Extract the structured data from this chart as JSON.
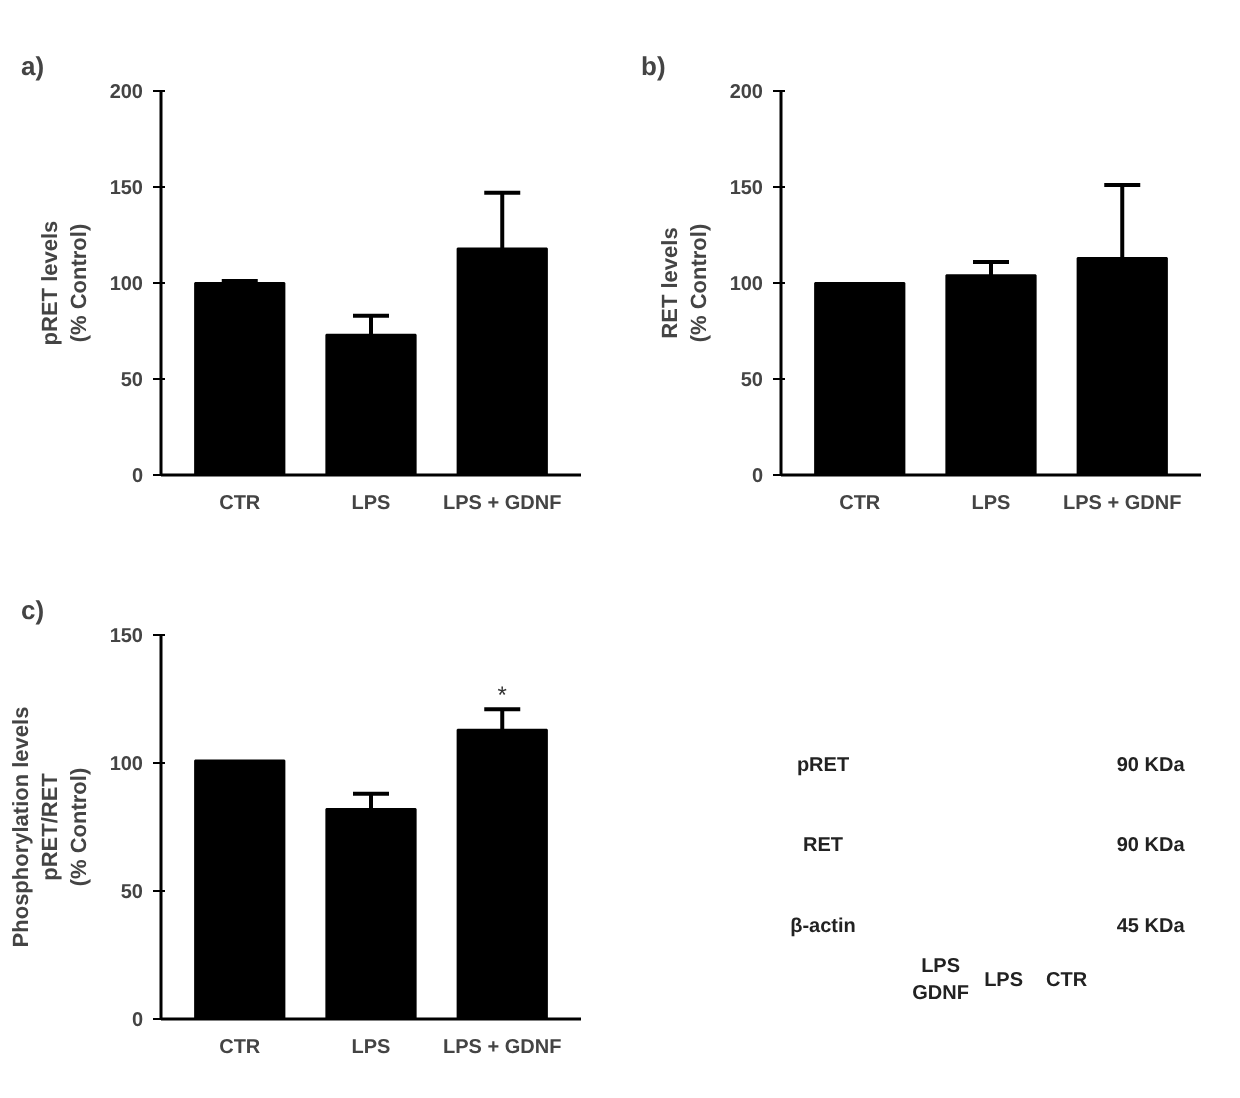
{
  "chart_data": [
    {
      "type": "bar",
      "title": "a)",
      "ylabel": "pRET levels\n(% Control)",
      "categories": [
        "CTR",
        "LPS",
        "LPS + GDNF"
      ],
      "values": [
        100,
        73,
        118
      ],
      "errors": [
        1,
        10,
        29
      ],
      "color": "#000000",
      "ylim": [
        0,
        200
      ],
      "yticks": [
        0,
        50,
        100,
        150,
        200
      ],
      "grid": false
    },
    {
      "type": "bar",
      "title": "b)",
      "ylabel": "RET levels\n(% Control)",
      "categories": [
        "CTR",
        "LPS",
        "LPS + GDNF"
      ],
      "values": [
        100,
        104,
        113
      ],
      "errors": [
        null,
        7,
        38
      ],
      "color": "#000000",
      "ylim": [
        0,
        200
      ],
      "yticks": [
        0,
        50,
        100,
        150,
        200
      ],
      "grid": false
    },
    {
      "type": "bar",
      "title": "c)",
      "ylabel": "Phosphorylation levels\npRET/RET\n(% Control)",
      "categories": [
        "CTR",
        "LPS",
        "LPS + GDNF"
      ],
      "values": [
        101,
        82,
        113
      ],
      "errors": [
        null,
        6,
        8
      ],
      "color": "#000000",
      "ylim": [
        0,
        150
      ],
      "yticks": [
        0,
        50,
        100,
        150
      ],
      "grid": false,
      "annotations": [
        {
          "text": "*",
          "x": "LPS + GDNF",
          "y": 121
        }
      ]
    },
    {
      "type": "other",
      "annotations": [
        "pRET",
        "RET",
        "β-actin",
        "90 KDa",
        "90 KDa",
        "45 KDa",
        "LPS\nGDNF",
        "LPS",
        "CTR"
      ]
    }
  ]
}
